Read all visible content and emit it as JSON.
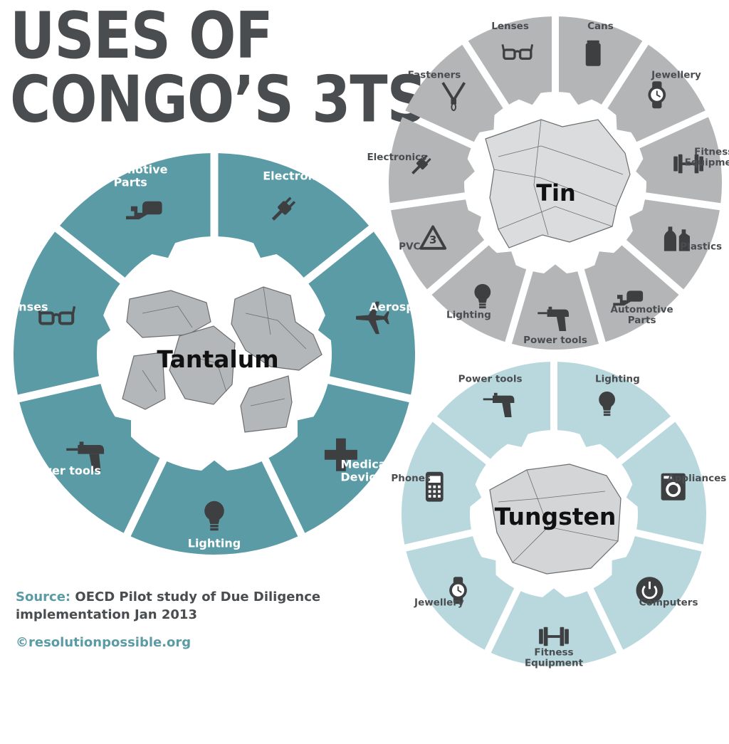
{
  "title": {
    "line1": "USES OF",
    "line2": "CONGO’S 3TS"
  },
  "colors": {
    "title": "#4a4d50",
    "tantalum": "#5b9ba6",
    "tin": "#b3b5b7",
    "tungsten": "#b8d8de",
    "icon": "#3d3f41",
    "tantalum_label": "#ffffff",
    "light_label": "#4a4d50",
    "rock_fill": "#b4b7b9",
    "rock_stroke": "#6b6e70",
    "source_key": "#5b9ba6"
  },
  "rings": [
    {
      "name": "Tantalum",
      "segments": [
        {
          "label": "Electronics",
          "icon": "plug-icon"
        },
        {
          "label": "Aerospace",
          "icon": "airplane-icon"
        },
        {
          "label": "Medical\nDevices",
          "icon": "medical-cross-icon"
        },
        {
          "label": "Lighting",
          "icon": "light-bulb-icon"
        },
        {
          "label": "Power tools",
          "icon": "drill-icon"
        },
        {
          "label": "Lenses",
          "icon": "glasses-icon"
        },
        {
          "label": "Automotive\nParts",
          "icon": "exhaust-pipe-icon"
        }
      ]
    },
    {
      "name": "Tin",
      "segments": [
        {
          "label": "Cans",
          "icon": "can-icon"
        },
        {
          "label": "Jewellery",
          "icon": "watch-icon"
        },
        {
          "label": "Fitness\nEquipment",
          "icon": "dumbbell-icon"
        },
        {
          "label": "Plastics",
          "icon": "plastic-bottles-icon"
        },
        {
          "label": "Automotive\nParts",
          "icon": "exhaust-pipe-icon"
        },
        {
          "label": "Power tools",
          "icon": "drill-icon"
        },
        {
          "label": "Lighting",
          "icon": "light-bulb-icon"
        },
        {
          "label": "PVC",
          "icon": "recycle-3-icon",
          "icon_text": "3"
        },
        {
          "label": "Electronics",
          "icon": "plug-icon"
        },
        {
          "label": "Fasteners",
          "icon": "zipper-icon"
        },
        {
          "label": "Lenses",
          "icon": "glasses-icon"
        }
      ]
    },
    {
      "name": "Tungsten",
      "segments": [
        {
          "label": "Lighting",
          "icon": "light-bulb-icon"
        },
        {
          "label": "Appliances",
          "icon": "washing-machine-icon"
        },
        {
          "label": "Computers",
          "icon": "power-button-icon"
        },
        {
          "label": "Fitness\nEquipment",
          "icon": "dumbbell-icon"
        },
        {
          "label": "Jewellery",
          "icon": "watch-icon"
        },
        {
          "label": "Phones",
          "icon": "mobile-phone-icon"
        },
        {
          "label": "Power tools",
          "icon": "drill-icon"
        }
      ]
    }
  ],
  "source": {
    "key": "Source:",
    "text": "OECD Pilot study of Due Diligence implementation Jan 2013"
  },
  "copyright": "©resolutionpossible.org"
}
